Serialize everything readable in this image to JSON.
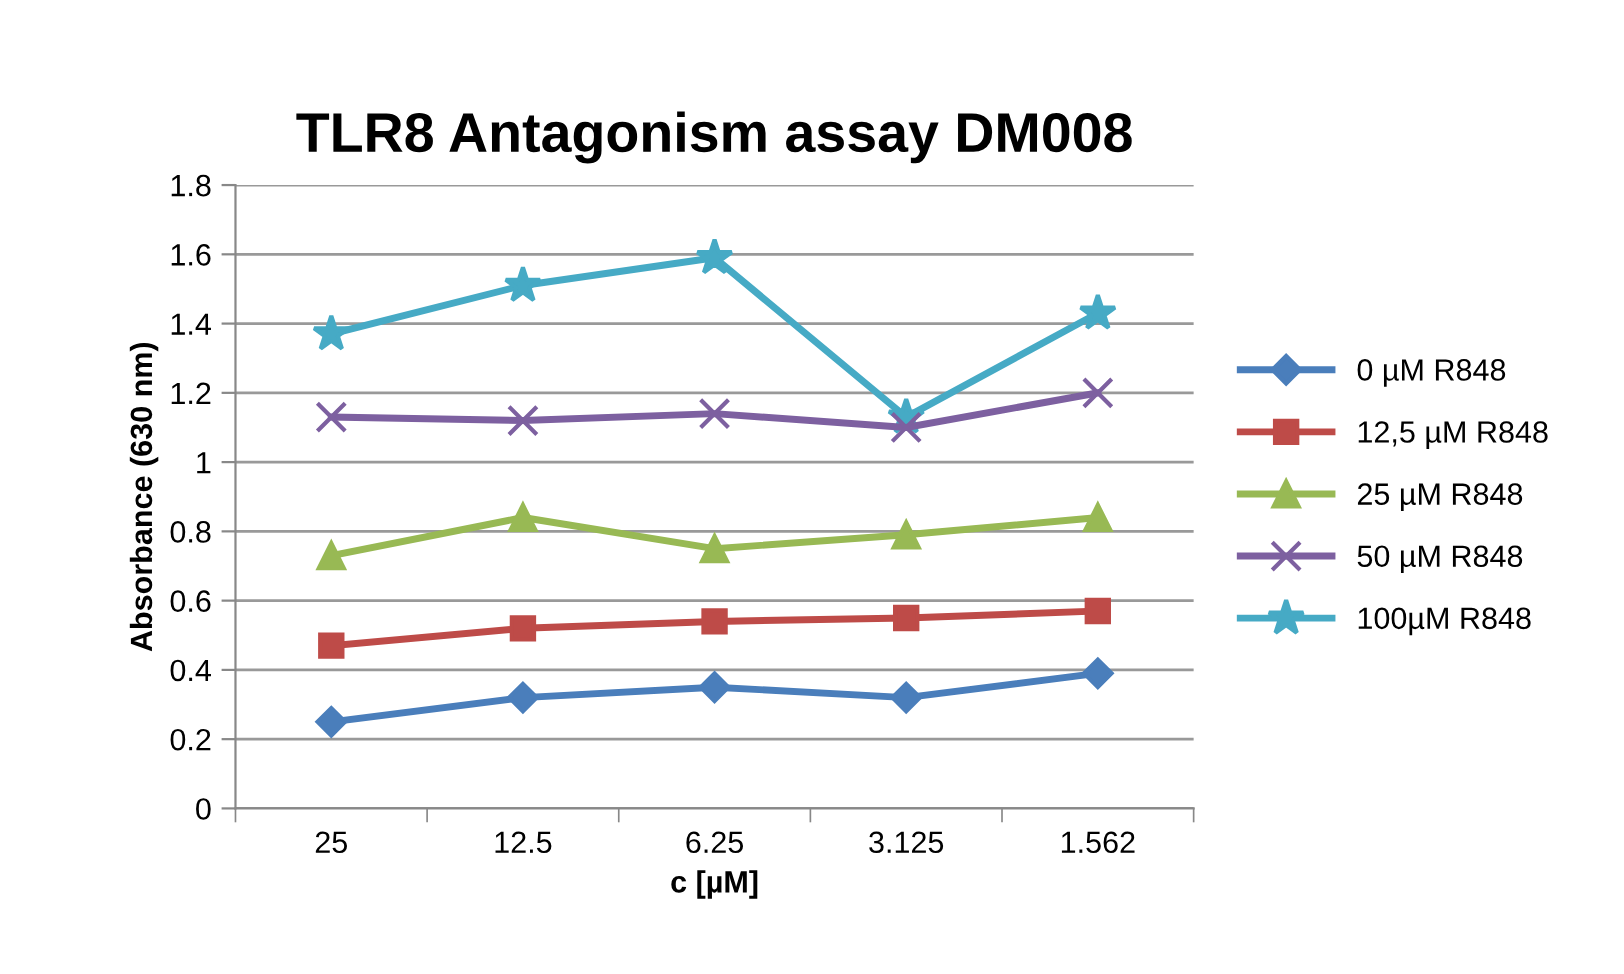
{
  "chart_data": {
    "type": "line",
    "title": "TLR8 Antagonism assay DM008",
    "xlabel": "c [µM]",
    "ylabel": "Absorbance (630 nm)",
    "categories": [
      "25",
      "12.5",
      "6.25",
      "3.125",
      "1.562"
    ],
    "series": [
      {
        "name": "0 µM R848",
        "color": "#4a7ebb",
        "marker": "diamond",
        "values": [
          0.25,
          0.32,
          0.35,
          0.32,
          0.39
        ]
      },
      {
        "name": "12,5 µM R848",
        "color": "#be4b48",
        "marker": "square",
        "values": [
          0.47,
          0.52,
          0.54,
          0.55,
          0.57
        ]
      },
      {
        "name": "25 µM R848",
        "color": "#98b954",
        "marker": "triangle",
        "values": [
          0.73,
          0.84,
          0.75,
          0.79,
          0.84
        ]
      },
      {
        "name": "50 µM R848",
        "color": "#7d60a0",
        "marker": "cross",
        "values": [
          1.13,
          1.12,
          1.14,
          1.1,
          1.2
        ]
      },
      {
        "name": "100µM R848",
        "color": "#46aac5",
        "marker": "star",
        "values": [
          1.37,
          1.51,
          1.59,
          1.13,
          1.43
        ]
      }
    ],
    "ylim": [
      0,
      1.8
    ],
    "yticks": [
      0,
      0.2,
      0.4,
      0.6,
      0.8,
      1,
      1.2,
      1.4,
      1.6,
      1.8
    ],
    "grid": "y",
    "legend": "right",
    "line_style": "solid"
  }
}
